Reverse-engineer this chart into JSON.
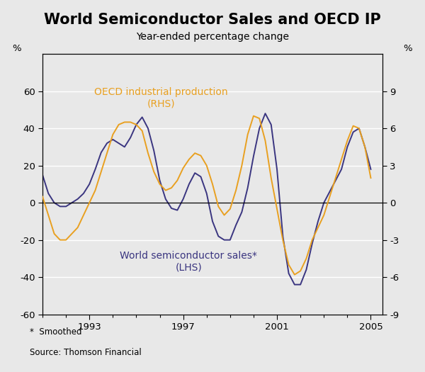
{
  "title": "World Semiconductor Sales and OECD IP",
  "subtitle": "Year-ended percentage change",
  "ylabel_left": "%",
  "ylabel_right": "%",
  "footnote1": "*  Smoothed",
  "footnote2": "Source: Thomson Financial",
  "lhs_label1": "World semiconductor sales*",
  "lhs_label2": "(LHS)",
  "rhs_label1": "OECD industrial production",
  "rhs_label2": "(RHS)",
  "lhs_color": "#3a3580",
  "rhs_color": "#e8a020",
  "ylim_left": [
    -60,
    80
  ],
  "ylim_right": [
    -9,
    12
  ],
  "yticks_left": [
    -60,
    -40,
    -20,
    0,
    20,
    40,
    60
  ],
  "yticks_right": [
    -9,
    -6,
    -3,
    0,
    3,
    6,
    9
  ],
  "xlim": [
    1991.0,
    2005.5
  ],
  "xticks": [
    1993,
    1997,
    2001,
    2005
  ],
  "background_color": "#e8e8e8",
  "grid_color": "#ffffff",
  "title_fontsize": 15,
  "subtitle_fontsize": 10,
  "axis_fontsize": 9.5,
  "annotation_fontsize": 10,
  "footnote_fontsize": 8.5,
  "lhs_x": [
    1991.0,
    1991.25,
    1991.5,
    1991.75,
    1992.0,
    1992.25,
    1992.5,
    1992.75,
    1993.0,
    1993.25,
    1993.5,
    1993.75,
    1994.0,
    1994.25,
    1994.5,
    1994.75,
    1995.0,
    1995.25,
    1995.5,
    1995.75,
    1996.0,
    1996.25,
    1996.5,
    1996.75,
    1997.0,
    1997.25,
    1997.5,
    1997.75,
    1998.0,
    1998.25,
    1998.5,
    1998.75,
    1999.0,
    1999.25,
    1999.5,
    1999.75,
    2000.0,
    2000.25,
    2000.5,
    2000.75,
    2001.0,
    2001.25,
    2001.5,
    2001.75,
    2002.0,
    2002.25,
    2002.5,
    2002.75,
    2003.0,
    2003.25,
    2003.5,
    2003.75,
    2004.0,
    2004.25,
    2004.5,
    2004.75,
    2005.0
  ],
  "lhs_y": [
    15,
    5,
    0,
    -2,
    -2,
    0,
    2,
    5,
    10,
    18,
    27,
    32,
    34,
    32,
    30,
    35,
    42,
    46,
    40,
    28,
    12,
    2,
    -3,
    -4,
    2,
    10,
    16,
    14,
    5,
    -10,
    -18,
    -20,
    -20,
    -12,
    -5,
    8,
    25,
    40,
    48,
    42,
    18,
    -18,
    -38,
    -44,
    -44,
    -36,
    -22,
    -10,
    0,
    6,
    12,
    18,
    30,
    38,
    40,
    30,
    18
  ],
  "rhs_x": [
    1991.0,
    1991.25,
    1991.5,
    1991.75,
    1992.0,
    1992.25,
    1992.5,
    1992.75,
    1993.0,
    1993.25,
    1993.5,
    1993.75,
    1994.0,
    1994.25,
    1994.5,
    1994.75,
    1995.0,
    1995.25,
    1995.5,
    1995.75,
    1996.0,
    1996.25,
    1996.5,
    1996.75,
    1997.0,
    1997.25,
    1997.5,
    1997.75,
    1998.0,
    1998.25,
    1998.5,
    1998.75,
    1999.0,
    1999.25,
    1999.5,
    1999.75,
    2000.0,
    2000.25,
    2000.5,
    2000.75,
    2001.0,
    2001.25,
    2001.5,
    2001.75,
    2002.0,
    2002.25,
    2002.5,
    2002.75,
    2003.0,
    2003.25,
    2003.5,
    2003.75,
    2004.0,
    2004.25,
    2004.5,
    2004.75,
    2005.0
  ],
  "rhs_y": [
    0.5,
    -1.0,
    -2.5,
    -3.0,
    -3.0,
    -2.5,
    -2.0,
    -1.0,
    0.0,
    1.0,
    2.5,
    4.0,
    5.5,
    6.3,
    6.5,
    6.5,
    6.3,
    5.8,
    4.0,
    2.5,
    1.5,
    1.0,
    1.2,
    1.8,
    2.8,
    3.5,
    4.0,
    3.8,
    3.0,
    1.5,
    -0.3,
    -1.0,
    -0.5,
    1.0,
    3.0,
    5.5,
    7.0,
    6.8,
    5.0,
    2.0,
    -0.5,
    -3.0,
    -5.0,
    -5.8,
    -5.5,
    -4.5,
    -3.0,
    -2.0,
    -1.0,
    0.5,
    2.0,
    3.5,
    5.0,
    6.2,
    6.0,
    4.5,
    2.0
  ]
}
